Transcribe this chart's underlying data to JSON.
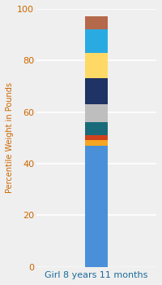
{
  "category": "Girl 8 years 11 months",
  "segments": [
    {
      "value": 47,
      "color": "#4A90D9"
    },
    {
      "value": 2,
      "color": "#F5A623"
    },
    {
      "value": 2,
      "color": "#D0421B"
    },
    {
      "value": 5,
      "color": "#1A6B7A"
    },
    {
      "value": 7,
      "color": "#BEBEBE"
    },
    {
      "value": 10,
      "color": "#1F3364"
    },
    {
      "value": 10,
      "color": "#FFD966"
    },
    {
      "value": 9,
      "color": "#29ABE2"
    },
    {
      "value": 5,
      "color": "#B5694B"
    }
  ],
  "ylabel": "Percentile Weight in Pounds",
  "ylim": [
    0,
    100
  ],
  "yticks": [
    0,
    20,
    40,
    60,
    80,
    100
  ],
  "background_color": "#EFEFEF",
  "tick_color": "#CC6600",
  "label_color": "#CC6600",
  "xlabel_color": "#1A6B9A",
  "grid_color": "#FFFFFF",
  "bar_width": 0.3,
  "xlim": [
    -0.8,
    0.8
  ]
}
